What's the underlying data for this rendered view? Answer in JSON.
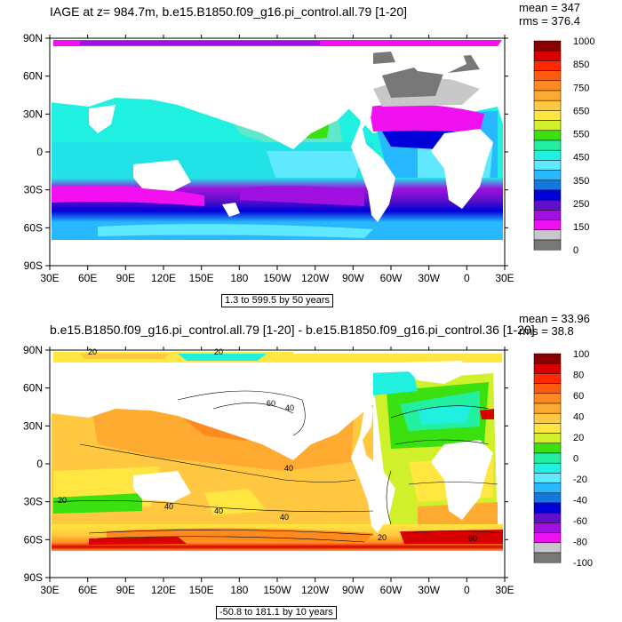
{
  "panels": [
    {
      "id": "top",
      "title": "IAGE at z= 984.7m, b.e15.B1850.f09_g16.pi_control.all.79 [1-20]",
      "mean_label": "mean = 347",
      "rms_label": "rms = 376.4",
      "range_label": "1.3 to 599.5 by 50 years"
    },
    {
      "id": "bottom",
      "title": "b.e15.B1850.f09_g16.pi_control.all.79 [1-20] - b.e15.B1850.f09_g16.pi_control.36 [1-20]",
      "mean_label": "mean = 33.96",
      "rms_label": "rms = 38.8",
      "range_label": "-50.8 to 181.1 by 10 years"
    }
  ],
  "chart_data": [
    {
      "type": "heatmap",
      "title": "IAGE at z= 984.7m, b.e15.B1850.f09_g16.pi_control.all.79 [1-20]",
      "x_ticks": [
        "30E",
        "60E",
        "90E",
        "120E",
        "150E",
        "180",
        "150W",
        "120W",
        "90W",
        "60W",
        "30W",
        "0",
        "30E"
      ],
      "y_ticks": [
        "90N",
        "60N",
        "30N",
        "0",
        "30S",
        "60S",
        "90S"
      ],
      "colorbar_labels": [
        "1000",
        "850",
        "750",
        "650",
        "550",
        "450",
        "350",
        "250",
        "150",
        "0"
      ],
      "colorbar_colors": [
        "#8a0000",
        "#d80000",
        "#ff2a00",
        "#ff5a10",
        "#ff8a20",
        "#ffaa30",
        "#ffc840",
        "#ffe640",
        "#cff02a",
        "#3ae010",
        "#22f0a0",
        "#20f0e0",
        "#60e8ff",
        "#28b8ff",
        "#1478e0",
        "#0000d8",
        "#6010c8",
        "#a010e0",
        "#f010f0",
        "#c8c8c8",
        "#787878"
      ],
      "xlim": [
        30,
        390
      ],
      "ylim": [
        -90,
        90
      ],
      "mean": 347,
      "rms": 376.4,
      "contour_range": "1.3 to 599.5 by 50 years"
    },
    {
      "type": "heatmap",
      "title": "b.e15.B1850.f09_g16.pi_control.all.79 [1-20] - b.e15.B1850.f09_g16.pi_control.36 [1-20]",
      "x_ticks": [
        "30E",
        "60E",
        "90E",
        "120E",
        "150E",
        "180",
        "150W",
        "120W",
        "90W",
        "60W",
        "30W",
        "0",
        "30E"
      ],
      "y_ticks": [
        "90N",
        "60N",
        "30N",
        "0",
        "30S",
        "60S",
        "90S"
      ],
      "colorbar_labels": [
        "100",
        "80",
        "60",
        "40",
        "20",
        "0",
        "-20",
        "-40",
        "-60",
        "-80",
        "-100"
      ],
      "colorbar_colors": [
        "#8a0000",
        "#d80000",
        "#ff2a00",
        "#ff5a10",
        "#ff8a20",
        "#ffaa30",
        "#ffc840",
        "#ffe640",
        "#cff02a",
        "#3ae010",
        "#22f0a0",
        "#20f0e0",
        "#60e8ff",
        "#28b8ff",
        "#1478e0",
        "#0000d8",
        "#6010c8",
        "#a010e0",
        "#f010f0",
        "#c8c8c8",
        "#787878"
      ],
      "contour_labels": [
        "20",
        "20",
        "40",
        "60",
        "40",
        "20",
        "40",
        "40",
        "20",
        "60",
        "40"
      ],
      "xlim": [
        30,
        390
      ],
      "ylim": [
        -90,
        90
      ],
      "mean": 33.96,
      "rms": 38.8,
      "contour_range": "-50.8 to 181.1 by 10 years"
    }
  ]
}
